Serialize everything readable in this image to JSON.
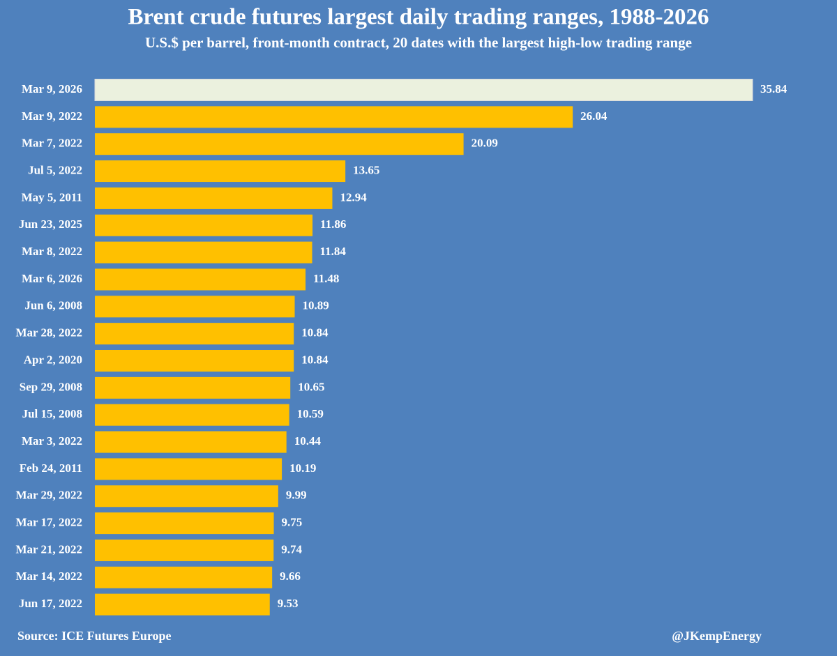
{
  "chart_data": {
    "type": "barh",
    "title": "Brent crude futures largest daily trading ranges, 1988-2026",
    "subtitle": "U.S.$ per barrel, front-month contract, 20 dates with the largest high-low trading range",
    "source": "Source: ICE Futures Europe",
    "credit": "@JKempEnergy",
    "categories": [
      "Mar 9, 2026",
      "Mar 9, 2022",
      "Mar 7, 2022",
      "Jul 5, 2022",
      "May 5, 2011",
      "Jun 23, 2025",
      "Mar 8, 2022",
      "Mar 6, 2026",
      "Jun 6, 2008",
      "Mar 28, 2022",
      "Apr 2, 2020",
      "Sep 29, 2008",
      "Jul 15, 2008",
      "Mar 3, 2022",
      "Feb 24, 2011",
      "Mar 29, 2022",
      "Mar 17, 2022",
      "Mar 21, 2022",
      "Mar 14, 2022",
      "Jun 17, 2022"
    ],
    "values": [
      35.84,
      26.04,
      20.09,
      13.65,
      12.94,
      11.86,
      11.84,
      11.48,
      10.89,
      10.84,
      10.84,
      10.65,
      10.59,
      10.44,
      10.19,
      9.99,
      9.75,
      9.74,
      9.66,
      9.53
    ],
    "colors": [
      "#ebf1de",
      "#ffc000",
      "#ffc000",
      "#ffc000",
      "#ffc000",
      "#ffc000",
      "#ffc000",
      "#ffc000",
      "#ffc000",
      "#ffc000",
      "#ffc000",
      "#ffc000",
      "#ffc000",
      "#ffc000",
      "#ffc000",
      "#ffc000",
      "#ffc000",
      "#ffc000",
      "#ffc000",
      "#ffc000"
    ]
  }
}
